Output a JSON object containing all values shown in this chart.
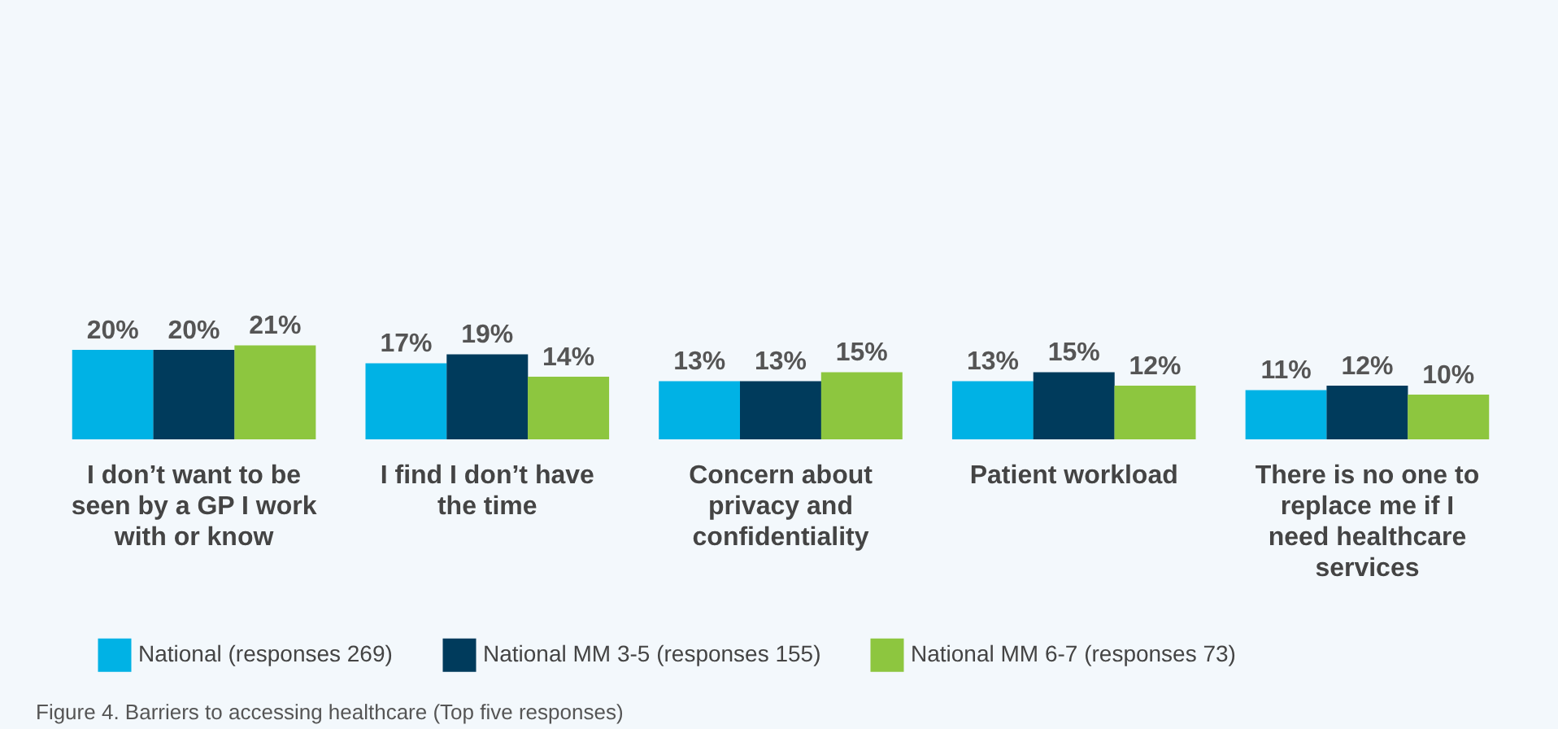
{
  "chart_data": {
    "type": "bar",
    "categories": [
      "I don’t want to be seen by a GP I work with or know",
      "I find I don’t have the time",
      "Concern about privacy and confidentiality",
      "Patient workload",
      "There is no one to replace me if I need healthcare services"
    ],
    "series": [
      {
        "name": "National (responses 269)",
        "color": "#00b2e5",
        "values": [
          20,
          17,
          13,
          13,
          11
        ],
        "value_labels": [
          "20%",
          "17%",
          "13%",
          "13%",
          "11%"
        ]
      },
      {
        "name": "National MM 3-5 (responses 155)",
        "color": "#003b5c",
        "values": [
          20,
          19,
          13,
          15,
          12
        ],
        "value_labels": [
          "20%",
          "19%",
          "13%",
          "15%",
          "12%"
        ]
      },
      {
        "name": "National MM 6-7 (responses 73)",
        "color": "#8dc63f",
        "values": [
          21,
          14,
          15,
          12,
          10
        ],
        "value_labels": [
          "21%",
          "14%",
          "15%",
          "12%",
          "10%"
        ]
      }
    ],
    "legend": "bottom",
    "annotations": [
      "Figure 4. Barriers to accessing healthcare (Top five responses)"
    ]
  }
}
